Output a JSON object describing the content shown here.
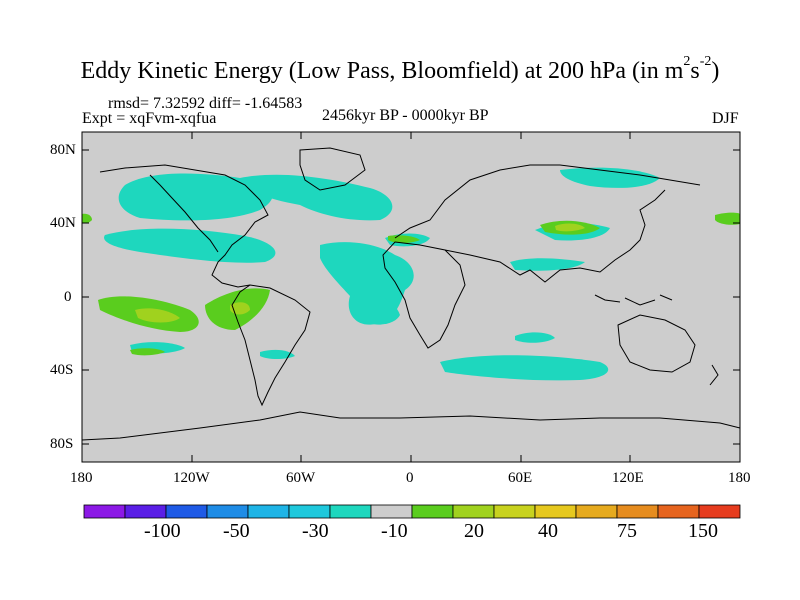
{
  "title": {
    "main": "Eddy Kinetic Energy (Low Pass, Bloomfield) at 200 hPa (in m",
    "sup1": "2",
    "mid": "s",
    "sup2": "-2",
    "close": ")"
  },
  "stats": "rmsd= 7.32592 diff= -1.64583",
  "expt": "Expt = xqFvm-xqfua",
  "period": "2456kyr BP - 0000kyr BP",
  "season": "DJF",
  "lat_ticks": [
    "80N",
    "40N",
    "0",
    "40S",
    "80S"
  ],
  "lon_ticks": [
    "180",
    "120W",
    "60W",
    "0",
    "60E",
    "120E",
    "180"
  ],
  "colorbar": {
    "labels": [
      "-100",
      "-50",
      "-30",
      "-10",
      "20",
      "40",
      "75",
      "150"
    ],
    "colors": [
      "#8c19e6",
      "#5a1ee6",
      "#1e5ae6",
      "#1e8ce6",
      "#1eb4e6",
      "#1ec8dc",
      "#1ed7be",
      "#cdcdcd",
      "#5acd1e",
      "#a0d21e",
      "#c8d21e",
      "#e6c81e",
      "#e6aa1e",
      "#e68c1e",
      "#e6641e",
      "#e63c1e"
    ]
  },
  "colors": {
    "ocean_bg": "#cdcdcd",
    "teal": "#1ed7be",
    "green": "#5acd1e",
    "yellow_green": "#a0d21e",
    "coast": "#000000"
  }
}
